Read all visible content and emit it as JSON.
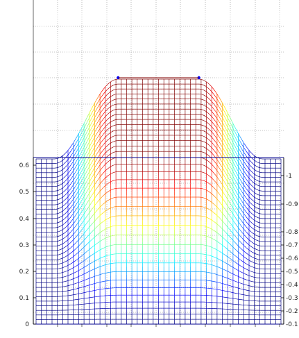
{
  "chart_data": {
    "type": "surface-mesh",
    "view": "2d-projection",
    "ylim": [
      -0.02,
      0.63
    ],
    "y_ticks": [
      "0",
      "0.1",
      "0.2",
      "0.3",
      "0.4",
      "0.5",
      "0.6"
    ],
    "colorbar": {
      "ticks": [
        "0.1",
        "0.2",
        "0.3",
        "0.4",
        "0.5",
        "0.6",
        "0.7",
        "0.8",
        "0.9",
        "1"
      ],
      "colormap": "jet",
      "range": [
        0.05,
        1.0
      ]
    },
    "grid": true,
    "grid_style": "dotted",
    "mesh": {
      "box_top_y": 0.63,
      "plateau_height": 1.0,
      "plateau_fraction": 0.33,
      "slope_fraction": 0.26,
      "u_lines": 46,
      "v_lines": 36,
      "edge_color": "#00008f",
      "marker_color": "#0000ff"
    },
    "title": "",
    "xlabel": "",
    "ylabel": ""
  }
}
